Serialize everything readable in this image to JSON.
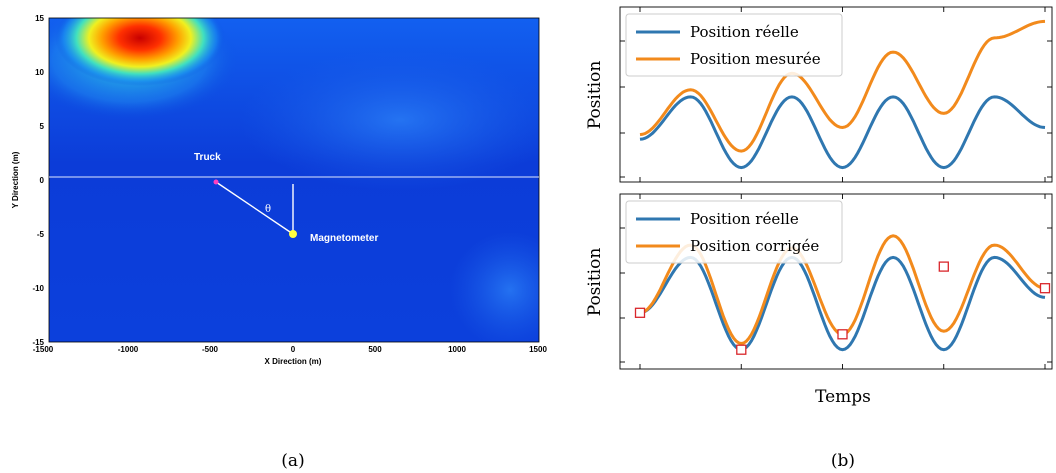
{
  "panel_a": {
    "caption": "(a)",
    "xlabel": "X Direction (m)",
    "ylabel": "Y Direction (m)",
    "x_ticks": [
      "-1500",
      "-1000",
      "-500",
      "0",
      "500",
      "1000",
      "1500"
    ],
    "y_ticks": [
      "15",
      "10",
      "5",
      "0",
      "-5",
      "-10",
      "-15"
    ],
    "truck_label": "Truck",
    "magnetometer_label": "Magnetometer",
    "angle_label": "θ"
  },
  "panel_b": {
    "caption": "(b)",
    "xlabel": "Temps",
    "top_ylabel": "Position",
    "bottom_ylabel": "Position",
    "top_legend": [
      "Position réelle",
      "Position mesurée"
    ],
    "bottom_legend": [
      "Position réelle",
      "Position corrigée"
    ]
  },
  "colors": {
    "real": "#2f77b0",
    "measured": "#f28a1c",
    "marker": "#d9262b"
  },
  "chart_data": [
    {
      "type": "heatmap",
      "title": "",
      "xlabel": "X Direction (m)",
      "ylabel": "Y Direction (m)",
      "xlim": [
        -1500,
        1500
      ],
      "ylim": [
        -15,
        15
      ],
      "hotspots": [
        {
          "x": -1000,
          "y": 13.5,
          "level": "max"
        },
        {
          "x": -850,
          "y": 12.5,
          "level": "high"
        }
      ],
      "truck": {
        "x": -450,
        "y": 0
      },
      "magnetometer": {
        "x": 0,
        "y": -5
      },
      "reference_line_y": 0.4
    },
    {
      "type": "line",
      "panel": "top",
      "xlabel": "",
      "ylabel": "Position",
      "series": [
        {
          "name": "Position réelle",
          "x": [
            0,
            0.5,
            1,
            1.5,
            2,
            2.5,
            3,
            3.5,
            4
          ],
          "values": [
            0.4,
            2.2,
            -0.8,
            2.2,
            -0.8,
            2.2,
            -0.8,
            2.2,
            0.9
          ]
        },
        {
          "name": "Position mesurée",
          "x": [
            0,
            0.5,
            1,
            1.5,
            2,
            2.5,
            3,
            3.5,
            4
          ],
          "values": [
            0.6,
            2.5,
            -0.1,
            3.2,
            0.9,
            4.1,
            1.5,
            4.7,
            5.4
          ]
        }
      ]
    },
    {
      "type": "line",
      "panel": "bottom",
      "xlabel": "Temps",
      "ylabel": "Position",
      "series": [
        {
          "name": "Position réelle",
          "x": [
            0,
            0.5,
            1,
            1.5,
            2,
            2.5,
            3,
            3.5,
            4
          ],
          "values": [
            0.4,
            2.2,
            -0.8,
            2.2,
            -0.8,
            2.2,
            -0.8,
            2.2,
            0.9
          ]
        },
        {
          "name": "Position corrigée",
          "x": [
            0,
            0.5,
            1,
            1.5,
            2,
            2.5,
            3,
            3.5,
            4
          ],
          "values": [
            0.4,
            2.6,
            -0.6,
            2.5,
            -0.3,
            2.9,
            -0.2,
            2.6,
            1.2
          ]
        }
      ],
      "correction_points": [
        {
          "x": 0,
          "y": 0.4
        },
        {
          "x": 1,
          "y": -0.8
        },
        {
          "x": 2,
          "y": -0.3
        },
        {
          "x": 3,
          "y": 1.9
        },
        {
          "x": 4,
          "y": 1.2
        }
      ]
    }
  ]
}
